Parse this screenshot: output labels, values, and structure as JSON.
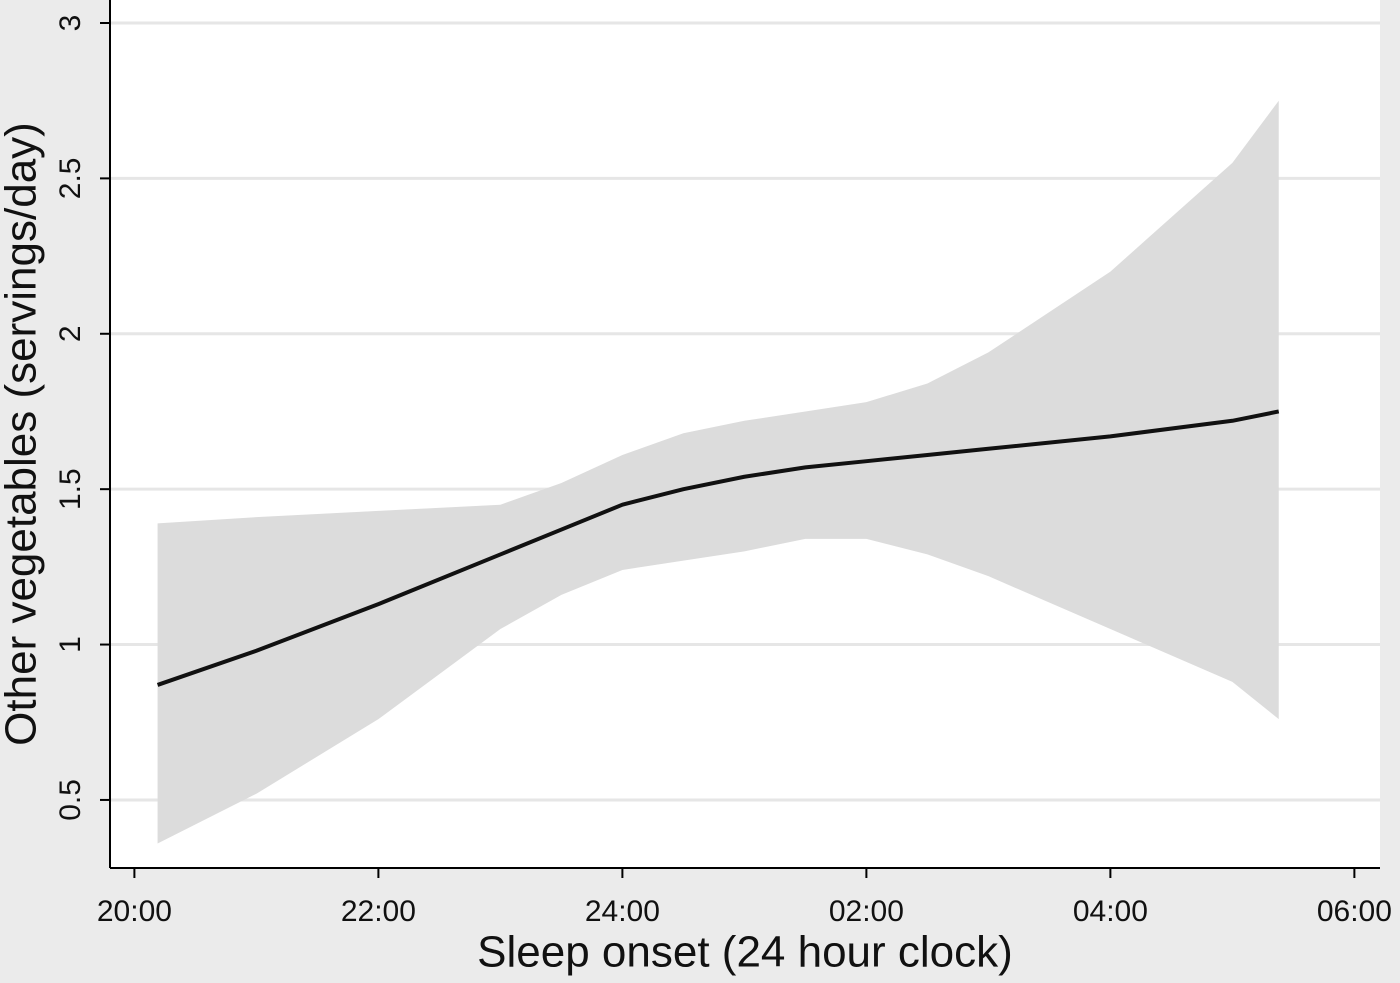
{
  "chart_data": {
    "type": "line",
    "x_label": "Sleep onset (24 hour clock)",
    "y_label": "Other vegetables (servings/day)",
    "x": [
      20.19,
      21,
      22,
      23,
      23.5,
      24,
      24.5,
      25,
      25.5,
      26,
      26.5,
      27,
      28,
      29,
      29.38
    ],
    "line": {
      "color": "#111111",
      "values": [
        0.87,
        0.98,
        1.13,
        1.29,
        1.37,
        1.45,
        1.5,
        1.54,
        1.57,
        1.59,
        1.61,
        1.63,
        1.67,
        1.72,
        1.75
      ]
    },
    "band": {
      "color": "#dcdcdc",
      "upper": [
        1.39,
        1.41,
        1.43,
        1.45,
        1.52,
        1.61,
        1.68,
        1.72,
        1.75,
        1.78,
        1.84,
        1.94,
        2.2,
        2.55,
        2.75
      ],
      "lower": [
        0.36,
        0.52,
        0.76,
        1.05,
        1.16,
        1.24,
        1.27,
        1.3,
        1.34,
        1.34,
        1.29,
        1.22,
        1.05,
        0.88,
        0.76
      ]
    },
    "xlim": [
      19.8,
      30.21
    ],
    "xticks": [
      {
        "value": 20,
        "label": "20:00"
      },
      {
        "value": 22,
        "label": "22:00"
      },
      {
        "value": 24,
        "label": "24:00"
      },
      {
        "value": 26,
        "label": "02:00"
      },
      {
        "value": 28,
        "label": "04:00"
      },
      {
        "value": 30,
        "label": "06:00"
      }
    ],
    "ylim": [
      0.281,
      3.074
    ],
    "yticks": [
      0.5,
      1,
      1.5,
      2,
      2.5,
      3
    ],
    "grid": true
  }
}
